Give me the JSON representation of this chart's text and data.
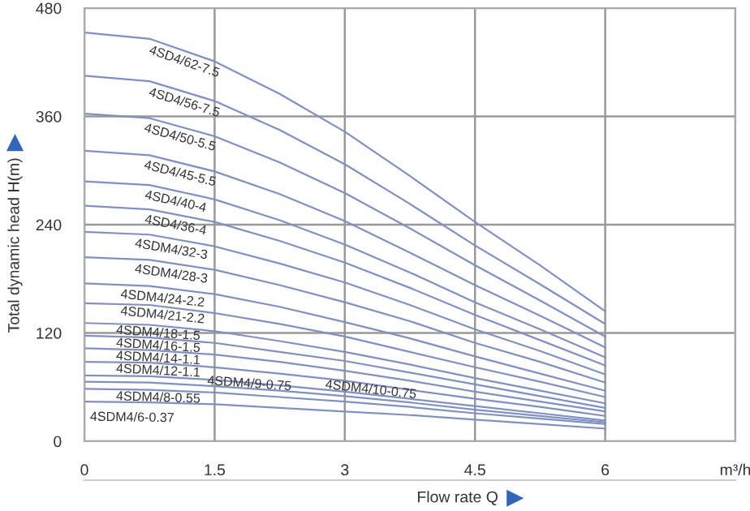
{
  "chart_data": {
    "type": "line",
    "xlabel": "Flow rate Q",
    "ylabel": "Total dynamic head H(m)",
    "x": [
      0,
      0.75,
      1.5,
      2.25,
      3,
      3.75,
      4.5,
      5.25,
      6
    ],
    "xlim": [
      0,
      7.5
    ],
    "xticks": [
      0,
      1.5,
      3,
      4.5,
      6,
      {
        "value": 7.5,
        "label": "m³/h"
      }
    ],
    "ylim": [
      0,
      480
    ],
    "yticks": [
      0,
      120,
      240,
      360,
      480
    ],
    "grid": true,
    "legend": false,
    "marker": "none",
    "line_style": "solid",
    "series": [
      {
        "name": "4SD4/62-7.5",
        "color": "#8090c0",
        "values": [
          453,
          446,
          421,
          385,
          343,
          294,
          243,
          195,
          144
        ]
      },
      {
        "name": "4SD4/56-7.5",
        "color": "#8090c0",
        "values": [
          405,
          399,
          377,
          345,
          307,
          263,
          217,
          174,
          130
        ]
      },
      {
        "name": "4SD4/50-5.5",
        "color": "#8090c0",
        "values": [
          363,
          358,
          338,
          309,
          275,
          236,
          195,
          156,
          116
        ]
      },
      {
        "name": "4SD4/45-5.5",
        "color": "#8090c0",
        "values": [
          322,
          317,
          299,
          274,
          244,
          209,
          173,
          139,
          104
        ]
      },
      {
        "name": "4SD4/40-4",
        "color": "#8090c0",
        "values": [
          288,
          284,
          268,
          245,
          218,
          187,
          154,
          124,
          93
        ]
      },
      {
        "name": "4SD4/36-4",
        "color": "#8090c0",
        "values": [
          261,
          257,
          243,
          222,
          198,
          170,
          140,
          112,
          84
        ]
      },
      {
        "name": "4SDM4/32-3",
        "color": "#8090c0",
        "values": [
          232,
          229,
          216,
          197,
          176,
          151,
          124,
          100,
          74
        ]
      },
      {
        "name": "4SDM4/28-3",
        "color": "#8090c0",
        "values": [
          204,
          201,
          190,
          173,
          154,
          133,
          109,
          88,
          65
        ]
      },
      {
        "name": "4SDM4/24-2.2",
        "color": "#8090c0",
        "values": [
          175,
          172,
          163,
          149,
          132,
          114,
          94,
          75,
          56
        ]
      },
      {
        "name": "4SDM4/21-2.2",
        "color": "#8090c0",
        "values": [
          153,
          151,
          142,
          130,
          116,
          99,
          82,
          66,
          49
        ]
      },
      {
        "name": "4SDM4/18-1.5",
        "color": "#8090c0",
        "values": [
          131,
          129,
          122,
          111,
          99,
          85,
          70,
          56,
          42
        ]
      },
      {
        "name": "4SDM4/16-1.5",
        "color": "#8090c0",
        "values": [
          117,
          115,
          109,
          99,
          89,
          76,
          63,
          50,
          37
        ]
      },
      {
        "name": "4SDM4/14-1.1",
        "color": "#8090c0",
        "values": [
          103,
          101,
          96,
          88,
          78,
          67,
          55,
          44,
          33
        ]
      },
      {
        "name": "4SDM4/12-1.1",
        "color": "#8090c0",
        "values": [
          88,
          87,
          82,
          75,
          67,
          57,
          47,
          38,
          28
        ]
      },
      {
        "name": "4SDM4/10-0.75",
        "color": "#8090c0",
        "values": [
          73,
          72,
          68,
          62,
          55,
          47,
          39,
          31,
          23
        ]
      },
      {
        "name": "4SDM4/9-0.75",
        "color": "#8090c0",
        "values": [
          66,
          65,
          61,
          56,
          50,
          43,
          35,
          28,
          21
        ]
      },
      {
        "name": "4SDM4/8-0.55",
        "color": "#8090c0",
        "values": [
          58,
          57,
          54,
          49,
          44,
          38,
          31,
          25,
          19
        ]
      },
      {
        "name": "4SDM4/6-0.37",
        "color": "#8090c0",
        "values": [
          44,
          43,
          41,
          37,
          33,
          29,
          24,
          19,
          14
        ]
      }
    ]
  }
}
